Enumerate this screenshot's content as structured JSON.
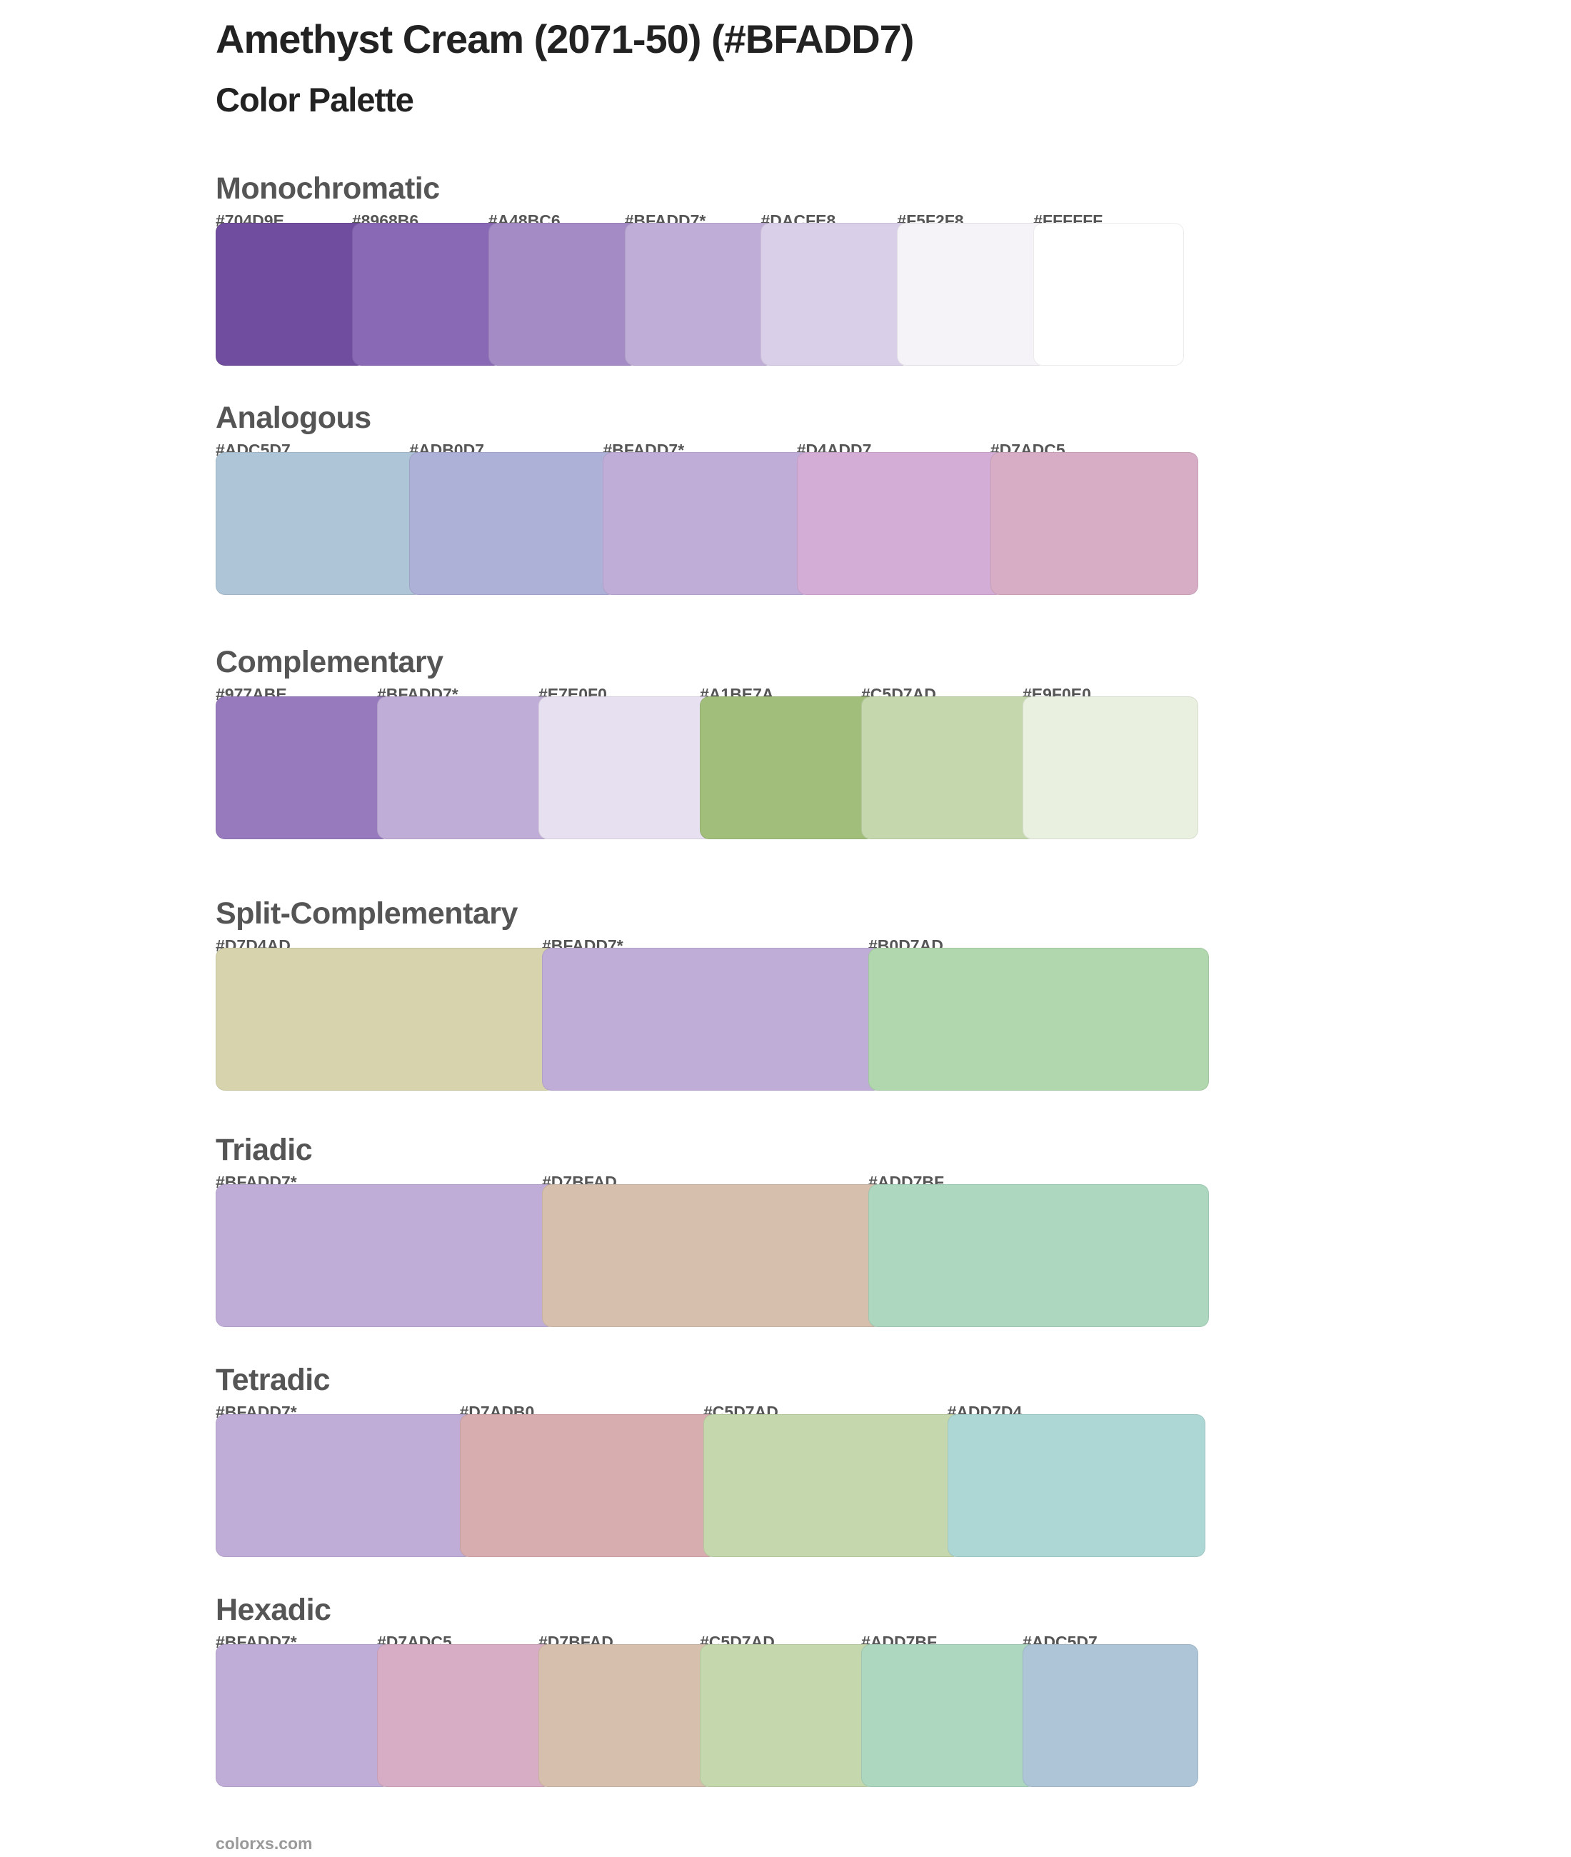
{
  "header": {
    "title": "Amethyst Cream (2071-50) (#BFADD7)",
    "subtitle": "Color Palette"
  },
  "sections": [
    {
      "name": "Monochromatic",
      "colors": [
        {
          "label": "#704D9E",
          "hex": "#704D9E"
        },
        {
          "label": "#8968B6",
          "hex": "#8968B6"
        },
        {
          "label": "#A48BC6",
          "hex": "#A48BC6"
        },
        {
          "label": "#BFADD7*",
          "hex": "#BFADD7"
        },
        {
          "label": "#DACFE8",
          "hex": "#DACFE8"
        },
        {
          "label": "#F5F2F8",
          "hex": "#F5F2F8"
        },
        {
          "label": "#FFFFFF",
          "hex": "#FFFFFF"
        }
      ]
    },
    {
      "name": "Analogous",
      "colors": [
        {
          "label": "#ADC5D7",
          "hex": "#ADC5D7"
        },
        {
          "label": "#ADB0D7",
          "hex": "#ADB0D7"
        },
        {
          "label": "#BFADD7*",
          "hex": "#BFADD7"
        },
        {
          "label": "#D4ADD7",
          "hex": "#D4ADD7"
        },
        {
          "label": "#D7ADC5",
          "hex": "#D7ADC5"
        }
      ]
    },
    {
      "name": "Complementary",
      "colors": [
        {
          "label": "#977ABE",
          "hex": "#977ABE"
        },
        {
          "label": "#BFADD7*",
          "hex": "#BFADD7"
        },
        {
          "label": "#E7E0F0",
          "hex": "#E7E0F0"
        },
        {
          "label": "#A1BE7A",
          "hex": "#A1BE7A"
        },
        {
          "label": "#C5D7AD",
          "hex": "#C5D7AD"
        },
        {
          "label": "#E9F0E0",
          "hex": "#E9F0E0"
        }
      ]
    },
    {
      "name": "Split-Complementary",
      "colors": [
        {
          "label": "#D7D4AD",
          "hex": "#D7D4AD"
        },
        {
          "label": "#BFADD7*",
          "hex": "#BFADD7"
        },
        {
          "label": "#B0D7AD",
          "hex": "#B0D7AD"
        }
      ]
    },
    {
      "name": "Triadic",
      "colors": [
        {
          "label": "#BFADD7*",
          "hex": "#BFADD7"
        },
        {
          "label": "#D7BFAD",
          "hex": "#D7BFAD"
        },
        {
          "label": "#ADD7BF",
          "hex": "#ADD7BF"
        }
      ]
    },
    {
      "name": "Tetradic",
      "colors": [
        {
          "label": "#BFADD7*",
          "hex": "#BFADD7"
        },
        {
          "label": "#D7ADB0",
          "hex": "#D7ADB0"
        },
        {
          "label": "#C5D7AD",
          "hex": "#C5D7AD"
        },
        {
          "label": "#ADD7D4",
          "hex": "#ADD7D4"
        }
      ]
    },
    {
      "name": "Hexadic",
      "colors": [
        {
          "label": "#BFADD7*",
          "hex": "#BFADD7"
        },
        {
          "label": "#D7ADC5",
          "hex": "#D7ADC5"
        },
        {
          "label": "#D7BFAD",
          "hex": "#D7BFAD"
        },
        {
          "label": "#C5D7AD",
          "hex": "#C5D7AD"
        },
        {
          "label": "#ADD7BF",
          "hex": "#ADD7BF"
        },
        {
          "label": "#ADC5D7",
          "hex": "#ADC5D7"
        }
      ]
    }
  ],
  "footer": {
    "site": "colorxs.com"
  }
}
